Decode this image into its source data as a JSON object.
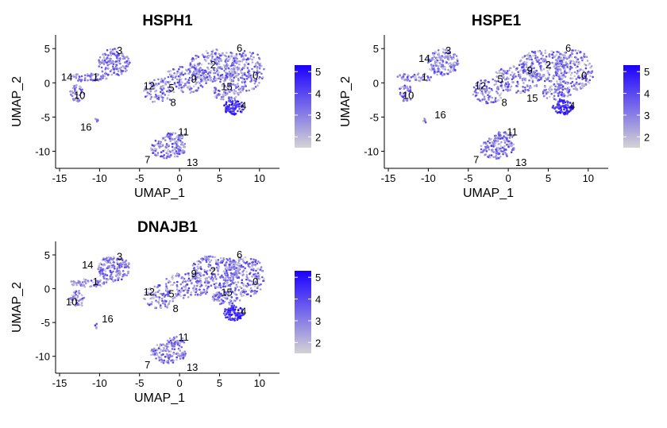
{
  "chart_data": [
    {
      "type": "scatter",
      "title": "HSPH1",
      "xlabel": "UMAP_1",
      "ylabel": "UMAP_2",
      "xlim": [
        -15.5,
        12.5
      ],
      "ylim": [
        -12.5,
        7
      ],
      "xticks": [
        "-15",
        "-10",
        "-5",
        "0",
        "5",
        "10"
      ],
      "yticks": [
        "5",
        "0",
        "-5",
        "-10"
      ],
      "legend": {
        "ticks": [
          "2",
          "3",
          "4",
          "5"
        ],
        "min": 1.5,
        "max": 5.3,
        "low_color": "#d3d3d3",
        "high_color": "#1a00ff"
      },
      "clusters": [
        {
          "label": "0",
          "x": 9.5,
          "y": 1.0
        },
        {
          "label": "1",
          "x": -10.5,
          "y": 0.8
        },
        {
          "label": "2",
          "x": 4.2,
          "y": 2.6
        },
        {
          "label": "3",
          "x": -7.5,
          "y": 4.7
        },
        {
          "label": "4",
          "x": 8.0,
          "y": -3.4
        },
        {
          "label": "5",
          "x": -1.0,
          "y": -0.8
        },
        {
          "label": "6",
          "x": 7.5,
          "y": 5.0
        },
        {
          "label": "7",
          "x": -4.0,
          "y": -11.3
        },
        {
          "label": "8",
          "x": -0.8,
          "y": -2.9
        },
        {
          "label": "9",
          "x": 1.8,
          "y": 0.5
        },
        {
          "label": "10",
          "x": -12.5,
          "y": -1.9
        },
        {
          "label": "11",
          "x": 0.5,
          "y": -7.2
        },
        {
          "label": "12",
          "x": -3.8,
          "y": -0.5
        },
        {
          "label": "13",
          "x": 1.6,
          "y": -11.7
        },
        {
          "label": "14",
          "x": -14.1,
          "y": 0.8
        },
        {
          "label": "15",
          "x": 5.9,
          "y": -0.6
        },
        {
          "label": "16",
          "x": -11.7,
          "y": -6.5
        }
      ]
    },
    {
      "type": "scatter",
      "title": "HSPE1",
      "xlabel": "UMAP_1",
      "ylabel": "UMAP_2",
      "xlim": [
        -15.5,
        12.5
      ],
      "ylim": [
        -12.5,
        7
      ],
      "xticks": [
        "-15",
        "-10",
        "-5",
        "0",
        "5",
        "10"
      ],
      "yticks": [
        "5",
        "0",
        "-5",
        "-10"
      ],
      "legend": {
        "ticks": [
          "2",
          "3",
          "4",
          "5"
        ],
        "min": 1.5,
        "max": 5.3,
        "low_color": "#d3d3d3",
        "high_color": "#1a00ff"
      },
      "clusters": [
        {
          "label": "0",
          "x": 9.5,
          "y": 1.0
        },
        {
          "label": "1",
          "x": -10.5,
          "y": 0.8
        },
        {
          "label": "2",
          "x": 5.0,
          "y": 2.6
        },
        {
          "label": "3",
          "x": -7.5,
          "y": 4.7
        },
        {
          "label": "4",
          "x": 8.0,
          "y": -3.4
        },
        {
          "label": "5",
          "x": -1.0,
          "y": 0.5
        },
        {
          "label": "6",
          "x": 7.5,
          "y": 5.0
        },
        {
          "label": "7",
          "x": -4.0,
          "y": -11.3
        },
        {
          "label": "8",
          "x": -0.5,
          "y": -2.9
        },
        {
          "label": "9",
          "x": 2.7,
          "y": 1.8
        },
        {
          "label": "10",
          "x": -12.5,
          "y": -1.9
        },
        {
          "label": "11",
          "x": 0.5,
          "y": -7.2
        },
        {
          "label": "12",
          "x": -3.5,
          "y": -0.5
        },
        {
          "label": "13",
          "x": 1.6,
          "y": -11.7
        },
        {
          "label": "14",
          "x": -10.5,
          "y": 3.5
        },
        {
          "label": "15",
          "x": 3.0,
          "y": -2.3
        },
        {
          "label": "16",
          "x": -8.5,
          "y": -4.7
        }
      ]
    },
    {
      "type": "scatter",
      "title": "DNAJB1",
      "xlabel": "UMAP_1",
      "ylabel": "UMAP_2",
      "xlim": [
        -15.5,
        12.5
      ],
      "ylim": [
        -12.5,
        7
      ],
      "xticks": [
        "-15",
        "-10",
        "-5",
        "0",
        "5",
        "10"
      ],
      "yticks": [
        "5",
        "0",
        "-5",
        "-10"
      ],
      "legend": {
        "ticks": [
          "2",
          "3",
          "4",
          "5"
        ],
        "min": 1.5,
        "max": 5.3,
        "low_color": "#d3d3d3",
        "high_color": "#1a00ff"
      },
      "clusters": [
        {
          "label": "0",
          "x": 9.5,
          "y": 1.0
        },
        {
          "label": "1",
          "x": -10.5,
          "y": 1.0
        },
        {
          "label": "2",
          "x": 4.2,
          "y": 2.6
        },
        {
          "label": "3",
          "x": -7.5,
          "y": 4.7
        },
        {
          "label": "4",
          "x": 8.0,
          "y": -3.4
        },
        {
          "label": "5",
          "x": -1.0,
          "y": -0.8
        },
        {
          "label": "6",
          "x": 7.5,
          "y": 5.0
        },
        {
          "label": "7",
          "x": -4.0,
          "y": -11.3
        },
        {
          "label": "8",
          "x": -0.5,
          "y": -3.0
        },
        {
          "label": "9",
          "x": 1.8,
          "y": 2.2
        },
        {
          "label": "10",
          "x": -13.5,
          "y": -2.0
        },
        {
          "label": "11",
          "x": 0.5,
          "y": -7.2
        },
        {
          "label": "12",
          "x": -3.8,
          "y": -0.5
        },
        {
          "label": "13",
          "x": 1.6,
          "y": -11.7
        },
        {
          "label": "14",
          "x": -11.5,
          "y": 3.5
        },
        {
          "label": "15",
          "x": 5.9,
          "y": -0.6
        },
        {
          "label": "16",
          "x": -9.0,
          "y": -4.5
        }
      ]
    }
  ]
}
